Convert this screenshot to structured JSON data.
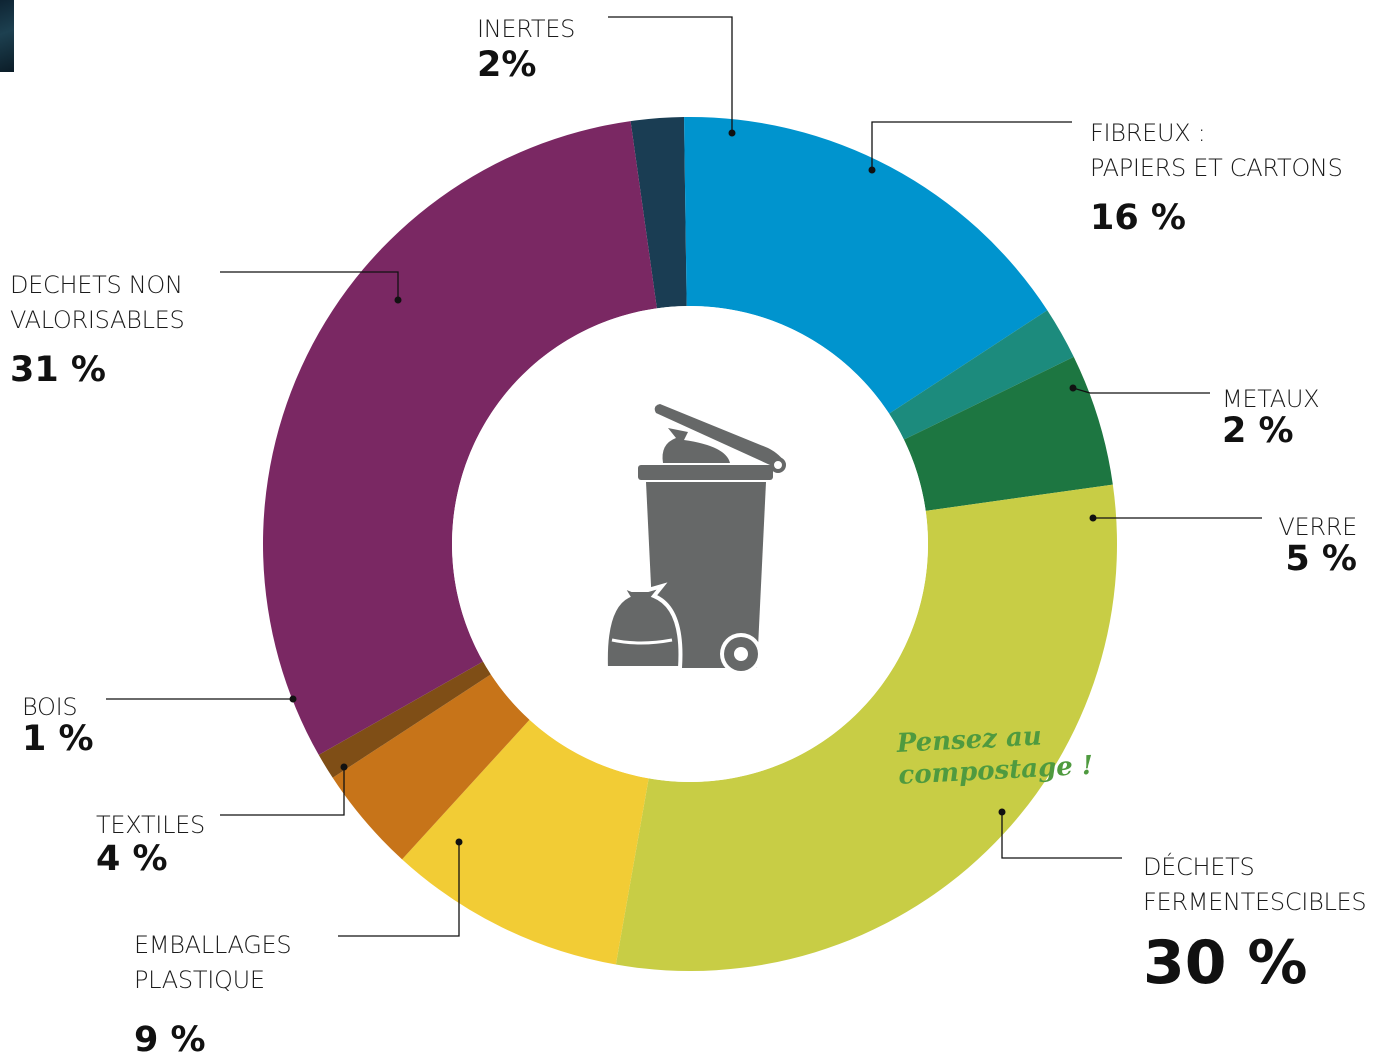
{
  "chart_data": {
    "type": "pie",
    "donut": true,
    "center_icon": "trash-bin-with-bags-icon",
    "slices": [
      {
        "key": "inertes",
        "label": "INERTES",
        "pct_label": "2%",
        "value": 2,
        "color": "#1a3d53"
      },
      {
        "key": "fibreux",
        "label": "FIBREUX :\nPAPIERS ET CARTONS",
        "pct_label": "16 %",
        "value": 16,
        "color": "#0094ce"
      },
      {
        "key": "metaux",
        "label": "METAUX",
        "pct_label": "2 %",
        "value": 2,
        "color": "#1c8b7d"
      },
      {
        "key": "verre",
        "label": "VERRE",
        "pct_label": "5 %",
        "value": 5,
        "color": "#1d7641"
      },
      {
        "key": "fermentescibles",
        "label": "DÉCHETS\nFERMENTESCIBLES",
        "pct_label": "30 %",
        "value": 30,
        "color": "#c8cd45"
      },
      {
        "key": "plastique",
        "label": "EMBALLAGES\nPLASTIQUE",
        "pct_label": "9 %",
        "value": 9,
        "color": "#f2cc35"
      },
      {
        "key": "textiles",
        "label": "TEXTILES",
        "pct_label": "4 %",
        "value": 4,
        "color": "#c77419"
      },
      {
        "key": "bois",
        "label": "BOIS",
        "pct_label": "1 %",
        "value": 1,
        "color": "#7f4e16"
      },
      {
        "key": "non_valorisables",
        "label": "DECHETS NON\nVALORISABLES",
        "pct_label": "31 %",
        "value": 31,
        "color": "#7a2863"
      }
    ],
    "annotation": "Pensez au\ncompostage !"
  },
  "colors": {
    "icon_gray": "#666868",
    "leader_line": "#111111",
    "annotation_green": "#4f9a3f"
  }
}
